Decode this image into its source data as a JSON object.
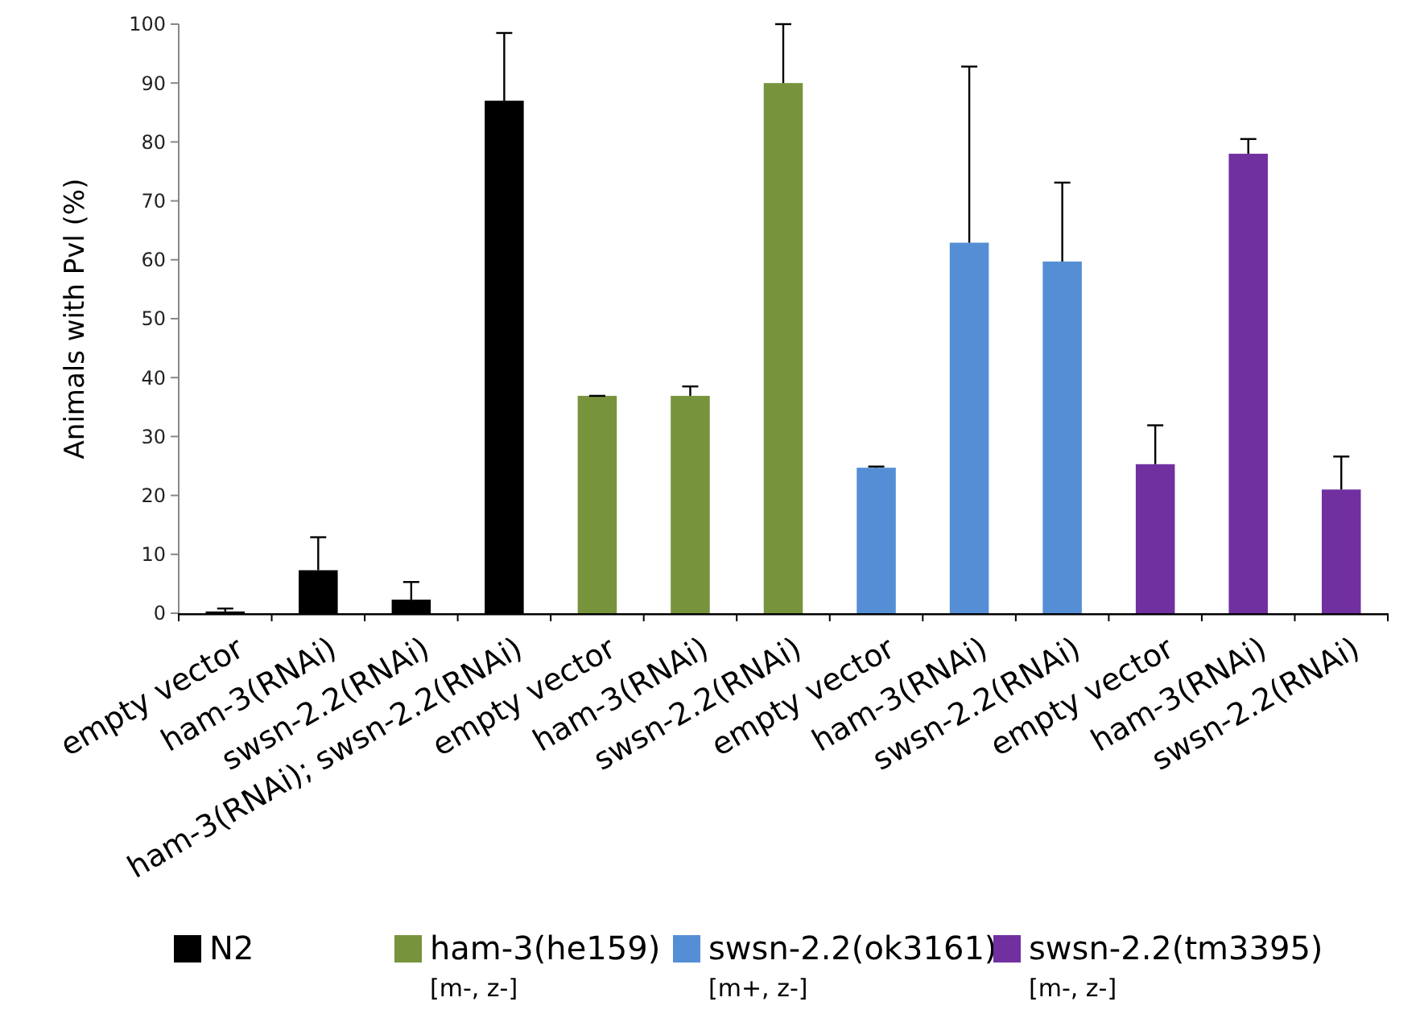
{
  "chart_data": {
    "type": "bar",
    "ylabel": "Animals with Pvl (%)",
    "categories": [
      "empty vector",
      "ham-3(RNAi)",
      "swsn-2.2(RNAi)",
      "ham-3(RNAi); swsn-2.2(RNAi)",
      "empty vector",
      "ham-3(RNAi)",
      "swsn-2.2(RNAi)",
      "empty vector",
      "ham-3(RNAi)",
      "swsn-2.2(RNAi)",
      "empty vector",
      "ham-3(RNAi)",
      "swsn-2.2(RNAi)"
    ],
    "series": [
      {
        "name": "N2",
        "color": "#000000",
        "values": [
          0.3,
          7.3,
          2.3,
          87.0,
          null,
          null,
          null,
          null,
          null,
          null,
          null,
          null,
          null
        ],
        "errors": [
          [
            0.3,
            0.8
          ],
          [
            7.3,
            12.9
          ],
          [
            2.3,
            5.3
          ],
          [
            87.0,
            98.5
          ],
          null,
          null,
          null,
          null,
          null,
          null,
          null,
          null,
          null
        ]
      },
      {
        "name": "ham-3(he159)\n[m-, z-]",
        "color": "#77933c",
        "values": [
          null,
          null,
          null,
          null,
          36.9,
          36.9,
          90.0,
          null,
          null,
          null,
          null,
          null,
          null
        ],
        "errors": [
          null,
          null,
          null,
          null,
          [
            36.9,
            36.9
          ],
          [
            36.9,
            38.5
          ],
          [
            90.0,
            100.0
          ],
          null,
          null,
          null,
          null,
          null,
          null
        ]
      },
      {
        "name": "swsn-2.2(ok3161)\n[m+, z-]",
        "color": "#558ed5",
        "values": [
          null,
          null,
          null,
          null,
          null,
          null,
          null,
          24.7,
          62.9,
          59.7,
          null,
          null,
          null
        ],
        "errors": [
          null,
          null,
          null,
          null,
          null,
          null,
          null,
          [
            24.7,
            24.9
          ],
          [
            62.9,
            92.8
          ],
          [
            59.7,
            73.1
          ],
          null,
          null,
          null
        ]
      },
      {
        "name": "swsn-2.2(tm3395)\n[m-, z-]",
        "color": "#7030a0",
        "values": [
          null,
          null,
          null,
          null,
          null,
          null,
          null,
          null,
          null,
          null,
          25.3,
          78.0,
          21.0
        ],
        "errors": [
          null,
          null,
          null,
          null,
          null,
          null,
          null,
          null,
          null,
          null,
          [
            25.3,
            31.9
          ],
          [
            78.0,
            80.5
          ],
          [
            21.0,
            26.6
          ]
        ]
      }
    ],
    "ylim": [
      0,
      100
    ],
    "yticks": [
      0,
      10,
      20,
      30,
      40,
      50,
      60,
      70,
      80,
      90,
      100
    ],
    "grid": false,
    "legend": "bottom"
  }
}
